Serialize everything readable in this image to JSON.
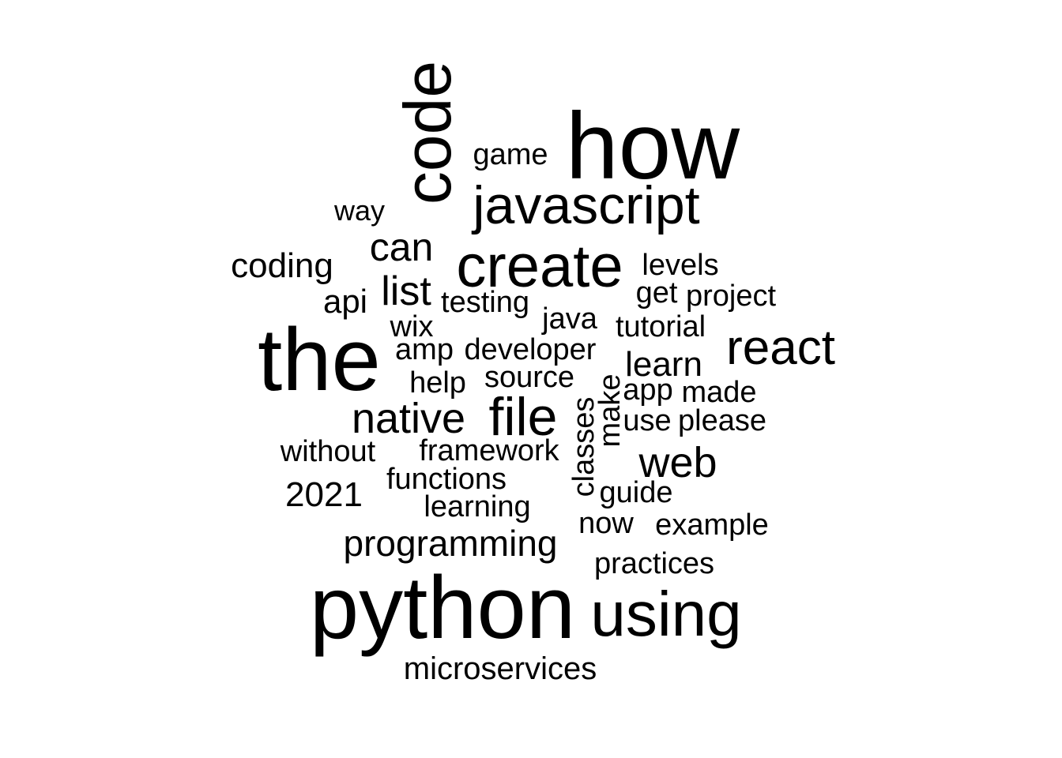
{
  "wordcloud": {
    "words": [
      "how",
      "the",
      "python",
      "code",
      "using",
      "create",
      "javascript",
      "file",
      "react",
      "native",
      "web",
      "can",
      "list",
      "programming",
      "coding",
      "learn",
      "api",
      "2021",
      "game",
      "way",
      "levels",
      "get",
      "project",
      "testing",
      "java",
      "tutorial",
      "wix",
      "amp",
      "developer",
      "help",
      "source",
      "make",
      "app",
      "made",
      "classes",
      "use",
      "please",
      "without",
      "framework",
      "functions",
      "guide",
      "learning",
      "now",
      "example",
      "practices",
      "microservices"
    ]
  }
}
